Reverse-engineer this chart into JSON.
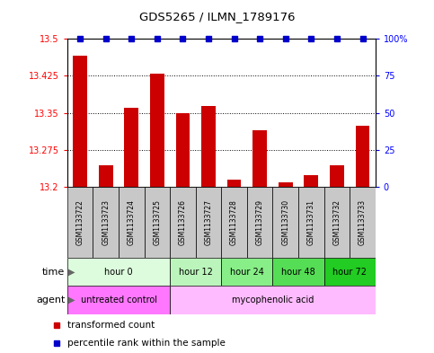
{
  "title": "GDS5265 / ILMN_1789176",
  "samples": [
    "GSM1133722",
    "GSM1133723",
    "GSM1133724",
    "GSM1133725",
    "GSM1133726",
    "GSM1133727",
    "GSM1133728",
    "GSM1133729",
    "GSM1133730",
    "GSM1133731",
    "GSM1133732",
    "GSM1133733"
  ],
  "bar_values": [
    13.465,
    13.245,
    13.36,
    13.43,
    13.35,
    13.365,
    13.215,
    13.315,
    13.21,
    13.225,
    13.245,
    13.325
  ],
  "percentile_values": [
    100,
    100,
    100,
    100,
    100,
    100,
    100,
    100,
    100,
    100,
    100,
    100
  ],
  "bar_color": "#cc0000",
  "percentile_color": "#0000cc",
  "ylim_left": [
    13.2,
    13.5
  ],
  "ylim_right": [
    0,
    100
  ],
  "yticks_left": [
    13.2,
    13.275,
    13.35,
    13.425,
    13.5
  ],
  "yticks_right": [
    0,
    25,
    50,
    75,
    100
  ],
  "ytick_labels_left": [
    "13.2",
    "13.275",
    "13.35",
    "13.425",
    "13.5"
  ],
  "ytick_labels_right": [
    "0",
    "25",
    "50",
    "75",
    "100%"
  ],
  "time_groups": [
    {
      "label": "hour 0",
      "start": 0,
      "end": 3,
      "color": "#ddfcdd"
    },
    {
      "label": "hour 12",
      "start": 4,
      "end": 5,
      "color": "#bbf5bb"
    },
    {
      "label": "hour 24",
      "start": 6,
      "end": 7,
      "color": "#88ee88"
    },
    {
      "label": "hour 48",
      "start": 8,
      "end": 9,
      "color": "#55dd55"
    },
    {
      "label": "hour 72",
      "start": 10,
      "end": 11,
      "color": "#22cc22"
    }
  ],
  "agent_groups": [
    {
      "label": "untreated control",
      "start": 0,
      "end": 3,
      "color": "#ff77ff"
    },
    {
      "label": "mycophenolic acid",
      "start": 4,
      "end": 11,
      "color": "#ffbbff"
    }
  ],
  "legend_bar_label": "transformed count",
  "legend_pct_label": "percentile rank within the sample",
  "xlabel_time": "time",
  "xlabel_agent": "agent",
  "bg_color": "#ffffff",
  "sample_box_color": "#c8c8c8",
  "grid_color": "#000000",
  "bar_width": 0.55
}
